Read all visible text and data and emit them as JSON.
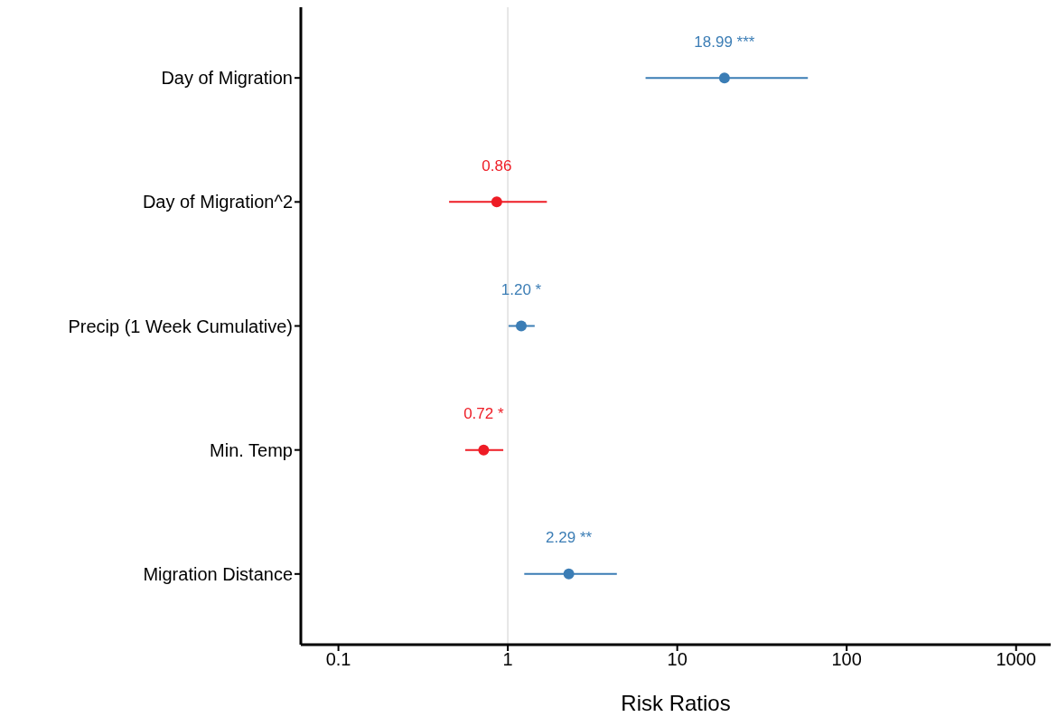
{
  "chart_data": {
    "type": "scatter",
    "orientation": "horizontal",
    "xlabel": "Risk Ratios",
    "categories": [
      "Day of Migration",
      "Day of Migration^2",
      "Precip (1 Week Cumulative)",
      "Min. Temp",
      "Migration Distance"
    ],
    "values": [
      18.99,
      0.86,
      1.2,
      0.72,
      2.29
    ],
    "errors": [
      [
        6.5,
        59
      ],
      [
        0.45,
        1.7
      ],
      [
        1.01,
        1.44
      ],
      [
        0.56,
        0.94
      ],
      [
        1.25,
        4.4
      ]
    ],
    "colors": [
      "#3b7db5",
      "#ee1c25",
      "#3b7db5",
      "#ee1c25",
      "#3b7db5"
    ],
    "value_labels": [
      "18.99 ***",
      "0.86",
      "1.20 *",
      "0.72 *",
      "2.29 **"
    ],
    "log": "x",
    "xlim": [
      0.06,
      1600
    ],
    "xticks": [
      0.1,
      1,
      10,
      100,
      1000
    ],
    "ref_lines": [
      {
        "axis": "x",
        "value": 1,
        "color": "#e6e6e6"
      }
    ],
    "marker": "circle",
    "grid": false,
    "legend": false
  }
}
